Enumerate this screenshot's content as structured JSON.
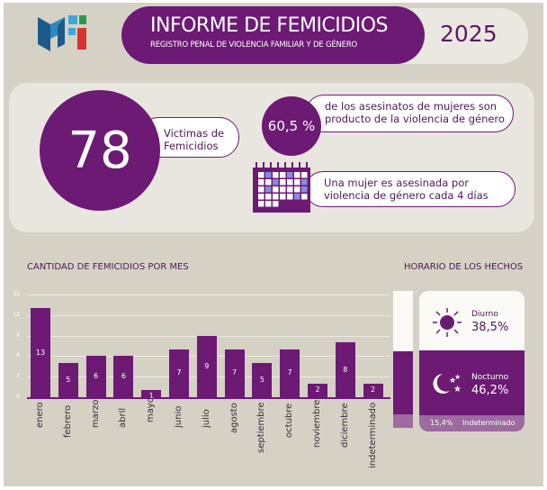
{
  "header": {
    "title": "INFORME DE FEMICIDIOS",
    "subtitle": "REGISTRO PENAL DE VIOLENCIA FAMILIAR Y DE GÉNERO",
    "year": "2025"
  },
  "stats": {
    "victims_count": "78",
    "victims_label_1": "Victimas de",
    "victims_label_2": "Femicidios",
    "percent": "60,5 %",
    "percent_text_1": "de los asesinatos de mujeres son",
    "percent_text_2": "producto de la violencia de género",
    "frequency_text_1": "Una mujer  es asesinada por",
    "frequency_text_2": "violencia de género cada 4 días"
  },
  "chart_data": {
    "type": "bar",
    "title": "CANTIDAD DE FEMICIDIOS POR MES",
    "categories": [
      "enero",
      "febrero",
      "marzo",
      "abril",
      "mayo",
      "junio",
      "julio",
      "agosto",
      "septiembre",
      "octubre",
      "noviembre",
      "diciembre",
      "indeterminado"
    ],
    "values": [
      13,
      5,
      6,
      6,
      1,
      7,
      9,
      7,
      5,
      7,
      2,
      8,
      2
    ],
    "yticks": [
      "0",
      "3",
      "6",
      "9",
      "12",
      "15"
    ],
    "ylim": [
      0,
      15
    ],
    "grid": true,
    "color": "#6c1a74"
  },
  "schedule": {
    "title": "HORARIO DE LOS HECHOS",
    "day_label": "Diurno",
    "day_value": "38,5%",
    "night_label": "Nocturno",
    "night_value": "46,2%",
    "unknown_value": "15,4%",
    "unknown_label": "Indeterminado",
    "fractions": {
      "day": 38.5,
      "night": 46.2,
      "unknown": 15.4
    }
  }
}
